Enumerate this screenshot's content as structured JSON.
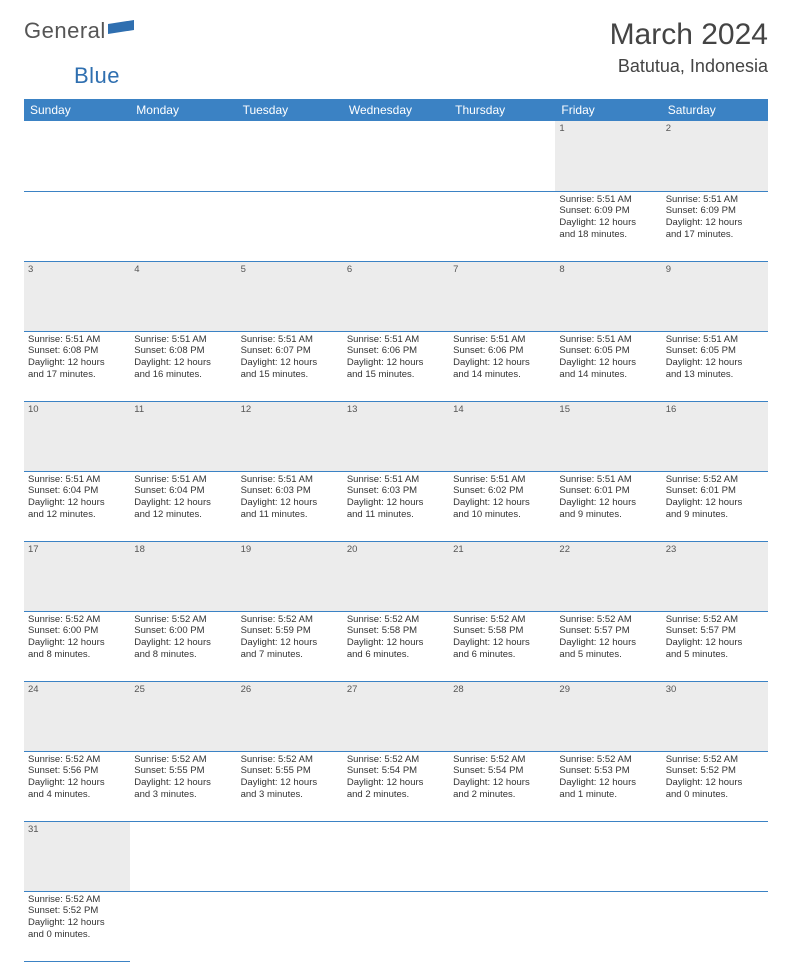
{
  "brand": {
    "part1": "General",
    "part2": "Blue"
  },
  "title": "March 2024",
  "location": "Batutua, Indonesia",
  "colors": {
    "header_bg": "#3b82c4",
    "header_text": "#ffffff",
    "daynum_bg": "#ececec",
    "border": "#3b82c4",
    "brand_accent": "#2f6fb0"
  },
  "weekdays": [
    "Sunday",
    "Monday",
    "Tuesday",
    "Wednesday",
    "Thursday",
    "Friday",
    "Saturday"
  ],
  "weeks": [
    [
      null,
      null,
      null,
      null,
      null,
      {
        "n": "1",
        "sr": "Sunrise: 5:51 AM",
        "ss": "Sunset: 6:09 PM",
        "d1": "Daylight: 12 hours",
        "d2": "and 18 minutes."
      },
      {
        "n": "2",
        "sr": "Sunrise: 5:51 AM",
        "ss": "Sunset: 6:09 PM",
        "d1": "Daylight: 12 hours",
        "d2": "and 17 minutes."
      }
    ],
    [
      {
        "n": "3",
        "sr": "Sunrise: 5:51 AM",
        "ss": "Sunset: 6:08 PM",
        "d1": "Daylight: 12 hours",
        "d2": "and 17 minutes."
      },
      {
        "n": "4",
        "sr": "Sunrise: 5:51 AM",
        "ss": "Sunset: 6:08 PM",
        "d1": "Daylight: 12 hours",
        "d2": "and 16 minutes."
      },
      {
        "n": "5",
        "sr": "Sunrise: 5:51 AM",
        "ss": "Sunset: 6:07 PM",
        "d1": "Daylight: 12 hours",
        "d2": "and 15 minutes."
      },
      {
        "n": "6",
        "sr": "Sunrise: 5:51 AM",
        "ss": "Sunset: 6:06 PM",
        "d1": "Daylight: 12 hours",
        "d2": "and 15 minutes."
      },
      {
        "n": "7",
        "sr": "Sunrise: 5:51 AM",
        "ss": "Sunset: 6:06 PM",
        "d1": "Daylight: 12 hours",
        "d2": "and 14 minutes."
      },
      {
        "n": "8",
        "sr": "Sunrise: 5:51 AM",
        "ss": "Sunset: 6:05 PM",
        "d1": "Daylight: 12 hours",
        "d2": "and 14 minutes."
      },
      {
        "n": "9",
        "sr": "Sunrise: 5:51 AM",
        "ss": "Sunset: 6:05 PM",
        "d1": "Daylight: 12 hours",
        "d2": "and 13 minutes."
      }
    ],
    [
      {
        "n": "10",
        "sr": "Sunrise: 5:51 AM",
        "ss": "Sunset: 6:04 PM",
        "d1": "Daylight: 12 hours",
        "d2": "and 12 minutes."
      },
      {
        "n": "11",
        "sr": "Sunrise: 5:51 AM",
        "ss": "Sunset: 6:04 PM",
        "d1": "Daylight: 12 hours",
        "d2": "and 12 minutes."
      },
      {
        "n": "12",
        "sr": "Sunrise: 5:51 AM",
        "ss": "Sunset: 6:03 PM",
        "d1": "Daylight: 12 hours",
        "d2": "and 11 minutes."
      },
      {
        "n": "13",
        "sr": "Sunrise: 5:51 AM",
        "ss": "Sunset: 6:03 PM",
        "d1": "Daylight: 12 hours",
        "d2": "and 11 minutes."
      },
      {
        "n": "14",
        "sr": "Sunrise: 5:51 AM",
        "ss": "Sunset: 6:02 PM",
        "d1": "Daylight: 12 hours",
        "d2": "and 10 minutes."
      },
      {
        "n": "15",
        "sr": "Sunrise: 5:51 AM",
        "ss": "Sunset: 6:01 PM",
        "d1": "Daylight: 12 hours",
        "d2": "and 9 minutes."
      },
      {
        "n": "16",
        "sr": "Sunrise: 5:52 AM",
        "ss": "Sunset: 6:01 PM",
        "d1": "Daylight: 12 hours",
        "d2": "and 9 minutes."
      }
    ],
    [
      {
        "n": "17",
        "sr": "Sunrise: 5:52 AM",
        "ss": "Sunset: 6:00 PM",
        "d1": "Daylight: 12 hours",
        "d2": "and 8 minutes."
      },
      {
        "n": "18",
        "sr": "Sunrise: 5:52 AM",
        "ss": "Sunset: 6:00 PM",
        "d1": "Daylight: 12 hours",
        "d2": "and 8 minutes."
      },
      {
        "n": "19",
        "sr": "Sunrise: 5:52 AM",
        "ss": "Sunset: 5:59 PM",
        "d1": "Daylight: 12 hours",
        "d2": "and 7 minutes."
      },
      {
        "n": "20",
        "sr": "Sunrise: 5:52 AM",
        "ss": "Sunset: 5:58 PM",
        "d1": "Daylight: 12 hours",
        "d2": "and 6 minutes."
      },
      {
        "n": "21",
        "sr": "Sunrise: 5:52 AM",
        "ss": "Sunset: 5:58 PM",
        "d1": "Daylight: 12 hours",
        "d2": "and 6 minutes."
      },
      {
        "n": "22",
        "sr": "Sunrise: 5:52 AM",
        "ss": "Sunset: 5:57 PM",
        "d1": "Daylight: 12 hours",
        "d2": "and 5 minutes."
      },
      {
        "n": "23",
        "sr": "Sunrise: 5:52 AM",
        "ss": "Sunset: 5:57 PM",
        "d1": "Daylight: 12 hours",
        "d2": "and 5 minutes."
      }
    ],
    [
      {
        "n": "24",
        "sr": "Sunrise: 5:52 AM",
        "ss": "Sunset: 5:56 PM",
        "d1": "Daylight: 12 hours",
        "d2": "and 4 minutes."
      },
      {
        "n": "25",
        "sr": "Sunrise: 5:52 AM",
        "ss": "Sunset: 5:55 PM",
        "d1": "Daylight: 12 hours",
        "d2": "and 3 minutes."
      },
      {
        "n": "26",
        "sr": "Sunrise: 5:52 AM",
        "ss": "Sunset: 5:55 PM",
        "d1": "Daylight: 12 hours",
        "d2": "and 3 minutes."
      },
      {
        "n": "27",
        "sr": "Sunrise: 5:52 AM",
        "ss": "Sunset: 5:54 PM",
        "d1": "Daylight: 12 hours",
        "d2": "and 2 minutes."
      },
      {
        "n": "28",
        "sr": "Sunrise: 5:52 AM",
        "ss": "Sunset: 5:54 PM",
        "d1": "Daylight: 12 hours",
        "d2": "and 2 minutes."
      },
      {
        "n": "29",
        "sr": "Sunrise: 5:52 AM",
        "ss": "Sunset: 5:53 PM",
        "d1": "Daylight: 12 hours",
        "d2": "and 1 minute."
      },
      {
        "n": "30",
        "sr": "Sunrise: 5:52 AM",
        "ss": "Sunset: 5:52 PM",
        "d1": "Daylight: 12 hours",
        "d2": "and 0 minutes."
      }
    ],
    [
      {
        "n": "31",
        "sr": "Sunrise: 5:52 AM",
        "ss": "Sunset: 5:52 PM",
        "d1": "Daylight: 12 hours",
        "d2": "and 0 minutes."
      },
      null,
      null,
      null,
      null,
      null,
      null
    ]
  ]
}
